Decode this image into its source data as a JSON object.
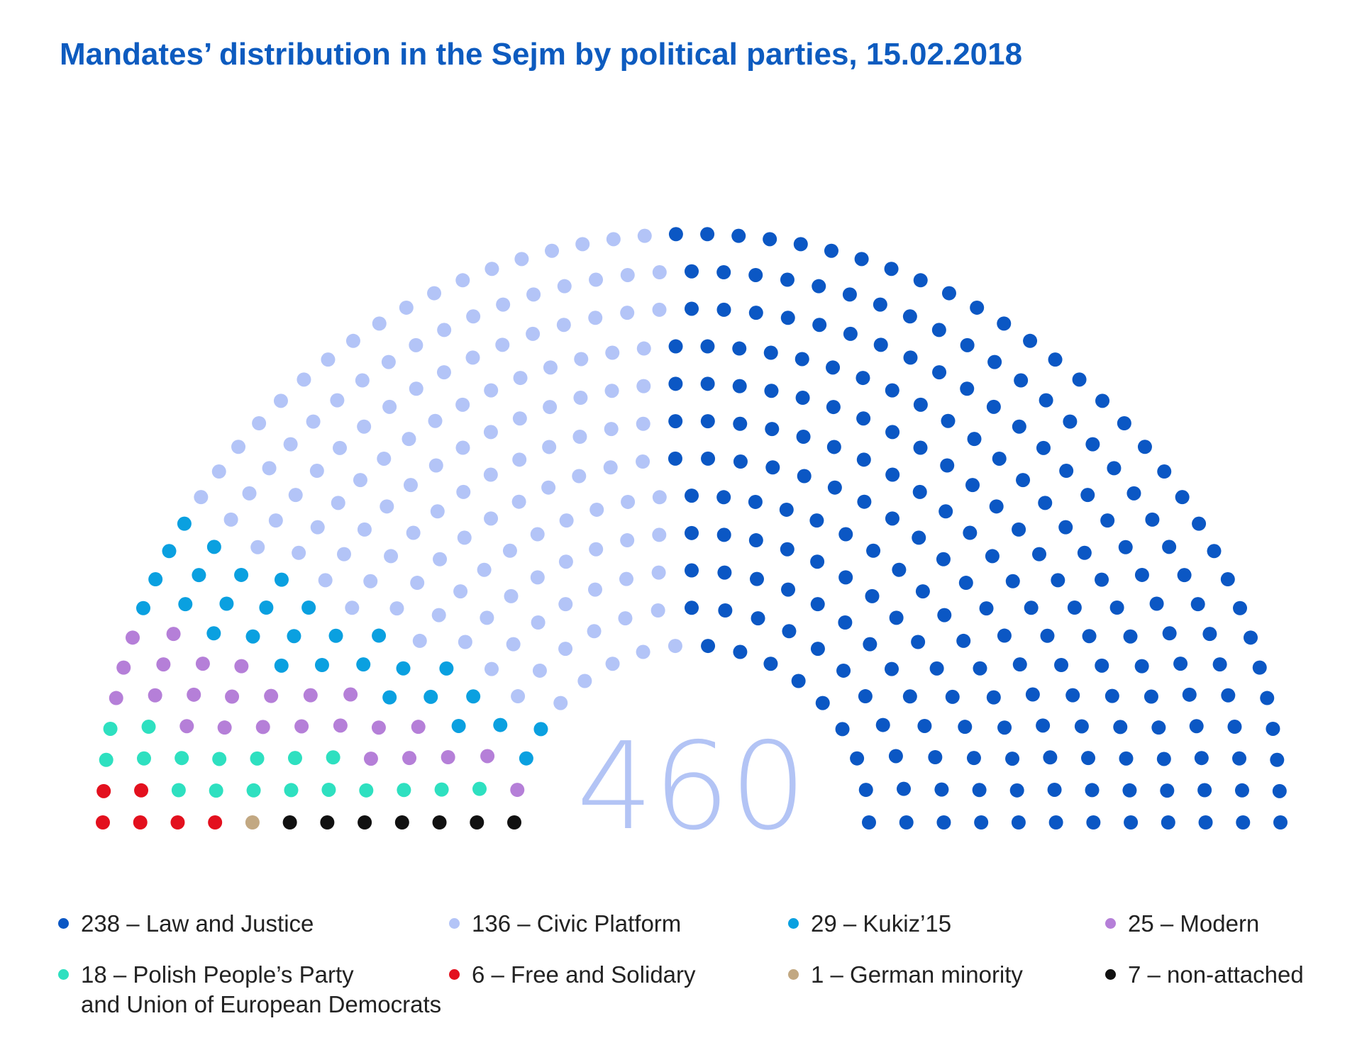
{
  "chart_data": {
    "type": "parliament",
    "title": "Mandates’ distribution in the Sejm by political parties, 15.02.2018",
    "total": 460,
    "series": [
      {
        "name": "238 – Law and Justice",
        "color": "#0b57c4",
        "value": 238
      },
      {
        "name": "136 – Civic Platform",
        "color": "#b3c4f7",
        "value": 136
      },
      {
        "name": "29 – Kukiz’15",
        "color": "#0aa0e0",
        "value": 29
      },
      {
        "name": "25 – Modern",
        "color": "#b57fd8",
        "value": 25
      },
      {
        "name": "18 – Polish People’s Party\nand Union of European Democrats",
        "color": "#2ee0c0",
        "value": 18
      },
      {
        "name": "6 – Free and Solidary",
        "color": "#e3101e",
        "value": 6
      },
      {
        "name": "1 – German minority",
        "color": "#c2a882",
        "value": 1
      },
      {
        "name": "7 – non-attached",
        "color": "#111111",
        "value": 7
      }
    ]
  }
}
